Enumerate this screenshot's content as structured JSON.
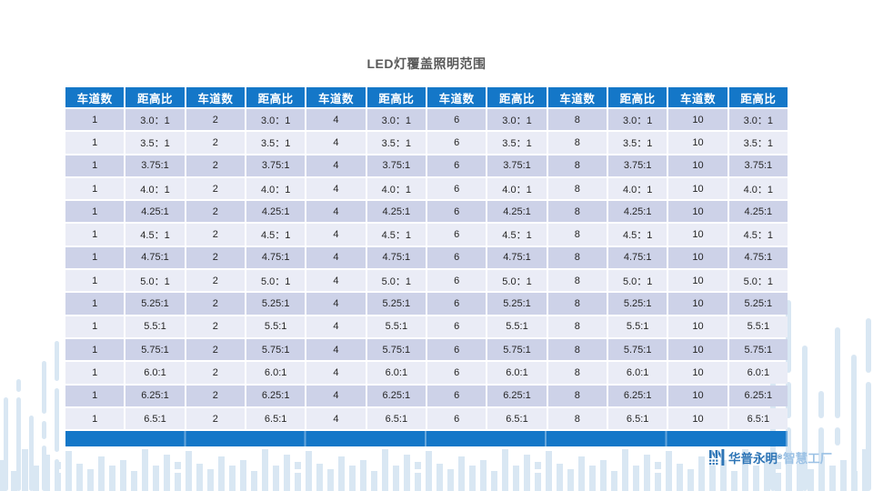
{
  "title": "LED灯覆盖照明范围",
  "table": {
    "header_pairs": [
      "车道数",
      "距高比"
    ],
    "lane_counts": [
      1,
      2,
      4,
      6,
      8,
      10
    ],
    "ratios": [
      "3.0：1",
      "3.5：1",
      "3.75:1",
      "4.0：1",
      "4.25:1",
      "4.5：1",
      "4.75:1",
      "5.0：1",
      "5.25:1",
      "5.5:1",
      "5.75:1",
      "6.0:1",
      "6.25:1",
      "6.5:1"
    ]
  },
  "logo": {
    "brand": "华普永明",
    "registered": "®",
    "suffix": "智慧工厂"
  },
  "colors": {
    "header_blue": "#1477c8",
    "row_dark": "#cdd2e8",
    "row_light": "#eaecf6",
    "decoration_blue": "#d9e7f3",
    "title_gray": "#595959",
    "brand_blue": "#2e75b6",
    "brand_light_blue": "#9cc2e5"
  }
}
